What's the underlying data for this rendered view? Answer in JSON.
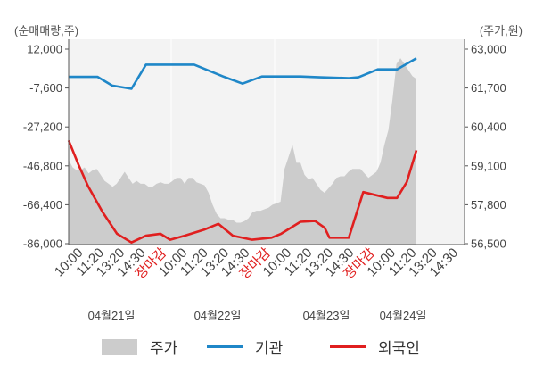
{
  "chart_data": {
    "type": "line",
    "unit_left": "(순매매량,주)",
    "unit_right": "(주가,원)",
    "y_left_ticks": [
      "12,000",
      "-7,600",
      "-27,200",
      "-46,800",
      "-66,400",
      "-86,000"
    ],
    "y_right_ticks": [
      "63,000",
      "61,700",
      "60,400",
      "59,100",
      "57,800",
      "56,500"
    ],
    "y_left_range": [
      -86000,
      12000
    ],
    "y_right_range": [
      56500,
      63000
    ],
    "x_tick_labels": [
      "10:00",
      "11:20",
      "13:20",
      "14:30",
      "장마감",
      "10:00",
      "11:20",
      "13:20",
      "14:30",
      "장마감",
      "10:00",
      "11:20",
      "13:20",
      "14:30",
      "장마감",
      "10:00",
      "11:20",
      "13:20",
      "14:30"
    ],
    "x_tick_highlight": [
      false,
      false,
      false,
      false,
      true,
      false,
      false,
      false,
      false,
      true,
      false,
      false,
      false,
      false,
      true,
      false,
      false,
      false,
      false
    ],
    "date_labels": [
      "04월21일",
      "04월22일",
      "04월23일",
      "04월24일"
    ],
    "series": [
      {
        "name": "주가",
        "kind": "area",
        "color": "#cccccc",
        "values": [
          59300,
          59050,
          58950,
          58950,
          59050,
          58850,
          58950,
          59000,
          58800,
          58600,
          58500,
          58400,
          58500,
          58700,
          58900,
          58700,
          58500,
          58600,
          58500,
          58500,
          58400,
          58400,
          58500,
          58550,
          58500,
          58500,
          58600,
          58700,
          58700,
          58500,
          58700,
          58700,
          58550,
          58500,
          58450,
          58200,
          57800,
          57500,
          57350,
          57350,
          57300,
          57300,
          57200,
          57200,
          57250,
          57350,
          57550,
          57600,
          57600,
          57650,
          57700,
          57800,
          57850,
          57900,
          59000,
          59400,
          59800,
          59200,
          59200,
          58800,
          58650,
          58700,
          58500,
          58300,
          58200,
          58350,
          58500,
          58700,
          58750,
          58750,
          58900,
          59000,
          59000,
          59000,
          58850,
          58700,
          58800,
          58900,
          59200,
          59800,
          60300,
          61300,
          62500,
          62700,
          62500,
          62300,
          62100,
          62000
        ]
      },
      {
        "name": "기관",
        "kind": "line",
        "color": "#1f87c8",
        "x": [
          0,
          6,
          9,
          13,
          16,
          22,
          26,
          32,
          36,
          40,
          48,
          52,
          58,
          60,
          64,
          68,
          72
        ],
        "values": [
          -2000,
          -2000,
          -6400,
          -8000,
          4200,
          4200,
          4200,
          -1800,
          -5400,
          -1800,
          -1800,
          -2200,
          -2600,
          -2200,
          1800,
          1800,
          7400
        ]
      },
      {
        "name": "외국인",
        "kind": "line",
        "color": "#e01f1f",
        "x": [
          0,
          2,
          4,
          7,
          10,
          13,
          16,
          19,
          21,
          24,
          28,
          31,
          34,
          38,
          42,
          44,
          48,
          51,
          53,
          54,
          58,
          61,
          66,
          68,
          70,
          72
        ],
        "values": [
          -34000,
          -46000,
          -57000,
          -70000,
          -81000,
          -85400,
          -82000,
          -81000,
          -84000,
          -82000,
          -79000,
          -76000,
          -82000,
          -84000,
          -83000,
          -81000,
          -75000,
          -74600,
          -78000,
          -83000,
          -83000,
          -60000,
          -63000,
          -63000,
          -55000,
          -39000
        ]
      }
    ],
    "x_range": [
      0,
      72
    ],
    "grid": {
      "vertical": true,
      "horizontal": false
    },
    "legend_position": "bottom"
  }
}
